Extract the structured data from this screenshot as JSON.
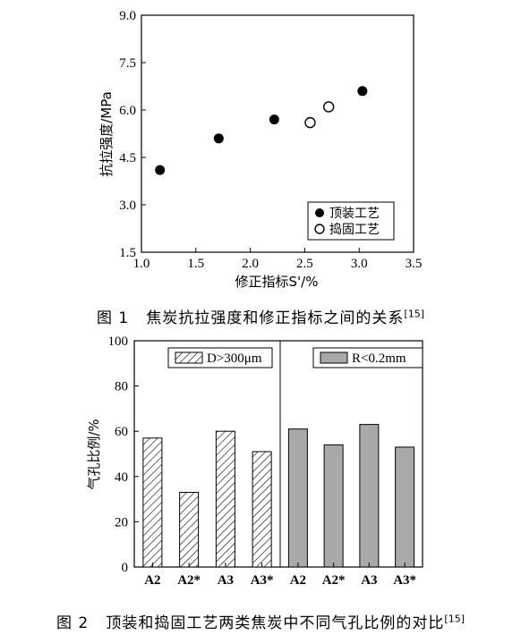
{
  "figures": {
    "fig1": {
      "caption_label": "图 1",
      "caption_text": "焦炭抗拉强度和修正指标之间的关系",
      "caption_ref": "[15]"
    },
    "fig2": {
      "caption_label": "图 2",
      "caption_text": "顶装和捣固工艺两类焦炭中不同气孔比例的对比",
      "caption_ref": "[15]"
    }
  },
  "chart_data": [
    {
      "type": "scatter",
      "xlabel": "修正指标S'/%",
      "ylabel": "抗拉强度/MPa",
      "xlim": [
        1.0,
        3.5
      ],
      "ylim": [
        1.5,
        9.0
      ],
      "xticks": [
        "1.0",
        "1.5",
        "2.0",
        "2.5",
        "3.0",
        "3.5"
      ],
      "yticks": [
        "1.5",
        "3.0",
        "4.5",
        "6.0",
        "7.5",
        "9.0"
      ],
      "grid": false,
      "legend_position": "bottom-right",
      "series": [
        {
          "name": "顶装工艺",
          "marker": "filled-circle",
          "color": "#000000",
          "x": [
            1.17,
            1.71,
            2.22,
            3.03
          ],
          "y": [
            4.1,
            5.1,
            5.7,
            6.6
          ]
        },
        {
          "name": "捣固工艺",
          "marker": "open-circle",
          "color": "#000000",
          "x": [
            2.55,
            2.72
          ],
          "y": [
            5.6,
            6.1
          ]
        }
      ]
    },
    {
      "type": "bar",
      "ylabel": "气孔比例/%",
      "ylim": [
        0,
        100
      ],
      "yticks": [
        "0",
        "20",
        "40",
        "60",
        "80",
        "100"
      ],
      "grid": false,
      "legend_position": "top-right of each panel",
      "panels": [
        {
          "name": "D>300μm",
          "fill": "hatched",
          "color": "#ffffff",
          "categories": [
            "A2",
            "A2*",
            "A3",
            "A3*"
          ],
          "values": [
            57,
            33,
            60,
            51
          ]
        },
        {
          "name": "R<0.2mm",
          "fill": "solid",
          "color": "#a9a9a9",
          "categories": [
            "A2",
            "A2*",
            "A3",
            "A3*"
          ],
          "values": [
            61,
            54,
            63,
            53
          ]
        }
      ]
    }
  ]
}
